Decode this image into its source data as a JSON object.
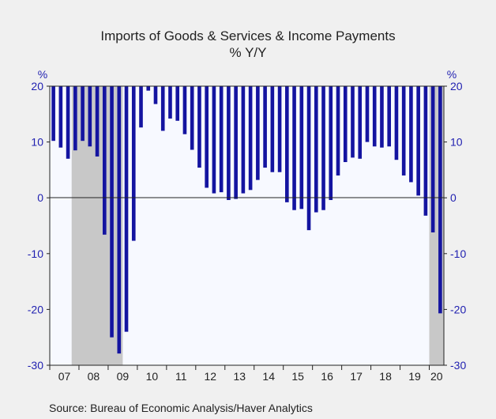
{
  "chart_data": {
    "type": "bar",
    "title": "Imports of Goods & Services & Income Payments",
    "subtitle": "% Y/Y",
    "y_unit_left": "%",
    "y_unit_right": "%",
    "ylim": [
      -30,
      20
    ],
    "yticks": [
      -30,
      -20,
      -10,
      0,
      10,
      20
    ],
    "year_labels": [
      "07",
      "08",
      "09",
      "10",
      "11",
      "12",
      "13",
      "14",
      "15",
      "16",
      "17",
      "18",
      "19",
      "20"
    ],
    "x_start": "2007-Q1",
    "frequency": "quarterly",
    "series": [
      {
        "values": [
          10.2,
          9.0,
          7.0,
          8.5,
          10.2,
          9.2,
          7.4,
          -6.6,
          -25.0,
          -27.9,
          -24.0,
          -7.7,
          12.6,
          19.2,
          16.8,
          12.0,
          14.2,
          13.8,
          11.4,
          8.6,
          5.4,
          1.8,
          0.8,
          1.0,
          -0.4,
          -0.2,
          0.8,
          1.4,
          3.2,
          5.4,
          4.6,
          4.6,
          -0.8,
          -2.2,
          -2.0,
          -5.8,
          -2.6,
          -2.2,
          -0.4,
          4.0,
          6.4,
          7.2,
          7.0,
          10.0,
          9.2,
          9.0,
          9.2,
          6.8,
          4.0,
          2.8,
          0.4,
          -3.2,
          -6.2,
          -20.7
        ],
        "color": "#1414a0"
      }
    ],
    "recessions": [
      {
        "start": "2007-Q4",
        "end": "2009-Q2"
      },
      {
        "start": "2020-Q1",
        "end": "2020-Q2"
      }
    ],
    "recession_color": "#c8c8c8",
    "plot_background": "#f7f9ff",
    "grid": false,
    "legend": "none"
  },
  "source": "Source:  Bureau of Economic Analysis/Haver Analytics"
}
